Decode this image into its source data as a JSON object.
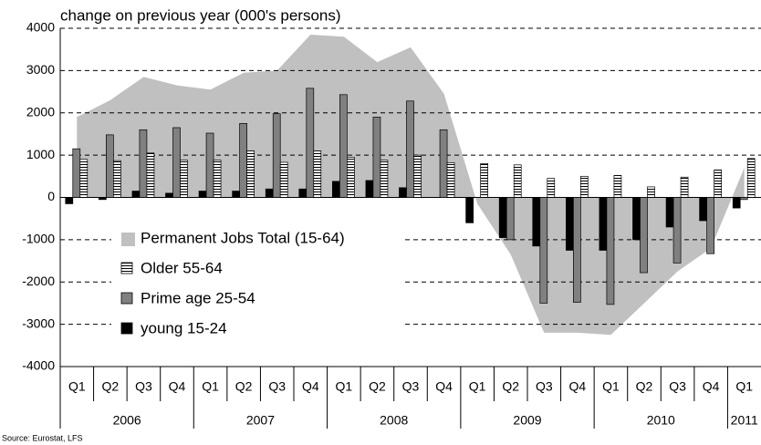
{
  "chart_data": {
    "type": "bar",
    "title": "change on previous year (000's persons)",
    "source": "Source: Eurostat, LFS",
    "categories": [
      "Q1",
      "Q2",
      "Q3",
      "Q4",
      "Q1",
      "Q2",
      "Q3",
      "Q4",
      "Q1",
      "Q2",
      "Q3",
      "Q4",
      "Q1",
      "Q2",
      "Q3",
      "Q4",
      "Q1",
      "Q2",
      "Q3",
      "Q4",
      "Q1"
    ],
    "years": [
      "2006",
      "2007",
      "2008",
      "2009",
      "2010",
      "2011"
    ],
    "series": [
      {
        "name": "Permanent Jobs Total (15-64)",
        "type": "area",
        "color": "#c0c0c0",
        "values": [
          1900,
          2300,
          2850,
          2650,
          2550,
          2950,
          3000,
          3850,
          3800,
          3200,
          3550,
          2450,
          -150,
          -1350,
          -3200,
          -3200,
          -3250,
          -2500,
          -1750,
          -1200,
          700
        ]
      },
      {
        "name": "Older 55-64",
        "type": "bar",
        "color": "#ffffff",
        "hatch": true,
        "values": [
          900,
          870,
          1050,
          880,
          880,
          1100,
          830,
          1100,
          950,
          880,
          1000,
          820,
          800,
          770,
          450,
          500,
          520,
          250,
          480,
          650,
          920
        ]
      },
      {
        "name": "Prime age 25-54",
        "type": "bar",
        "color": "#808080",
        "values": [
          1150,
          1480,
          1600,
          1650,
          1520,
          1750,
          1980,
          2580,
          2430,
          1900,
          2280,
          1600,
          0,
          -1000,
          -2500,
          -2480,
          -2530,
          -1780,
          -1550,
          -1330,
          -50
        ]
      },
      {
        "name": "young 15-24",
        "type": "bar",
        "color": "#000000",
        "values": [
          -150,
          -50,
          150,
          100,
          150,
          150,
          200,
          200,
          380,
          400,
          230,
          0,
          -600,
          -950,
          -1150,
          -1250,
          -1250,
          -1000,
          -700,
          -550,
          -250
        ]
      }
    ],
    "ylim": [
      -4000,
      4000
    ],
    "yticks": [
      4000,
      3000,
      2000,
      1000,
      0,
      -1000,
      -2000,
      -3000,
      -4000
    ],
    "grid": true
  }
}
